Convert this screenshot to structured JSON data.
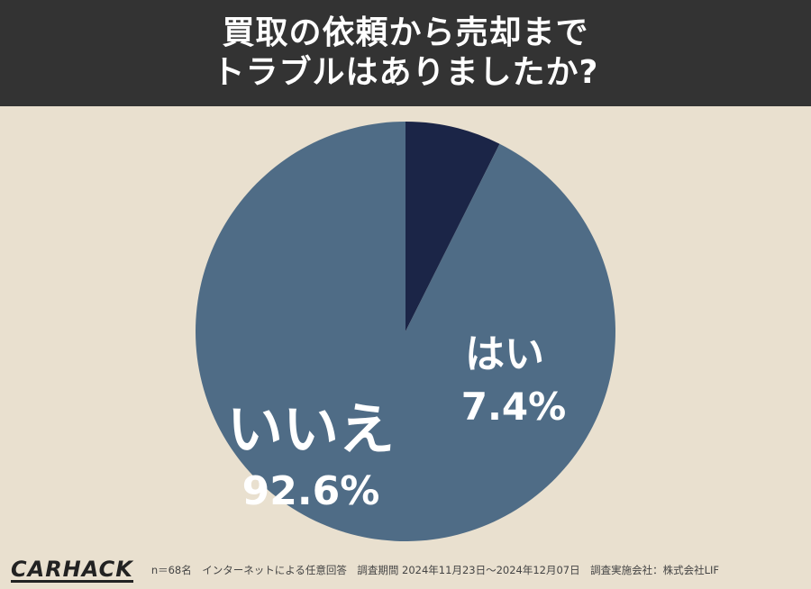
{
  "header": {
    "title_line1": "買取の依頼から売却まで",
    "title_line2": "トラブルはありましたか?"
  },
  "chart_data": {
    "type": "pie",
    "title": "買取の依頼から売却までトラブルはありましたか?",
    "slices": [
      {
        "label": "はい",
        "value": 7.4,
        "value_label": "7.4%",
        "color": "#1b2547"
      },
      {
        "label": "いいえ",
        "value": 92.6,
        "value_label": "92.6%",
        "color": "#4f6c86"
      }
    ]
  },
  "footer": {
    "logo": "CARHACK",
    "note": "n＝68名　インターネットによる任意回答　調査期間 2024年11月23日～2024年12月07日　調査実施会社：株式会社LIF"
  },
  "colors": {
    "background": "#e9e0cf",
    "header_bg": "#333333",
    "yes": "#1b2547",
    "no": "#4f6c86"
  }
}
